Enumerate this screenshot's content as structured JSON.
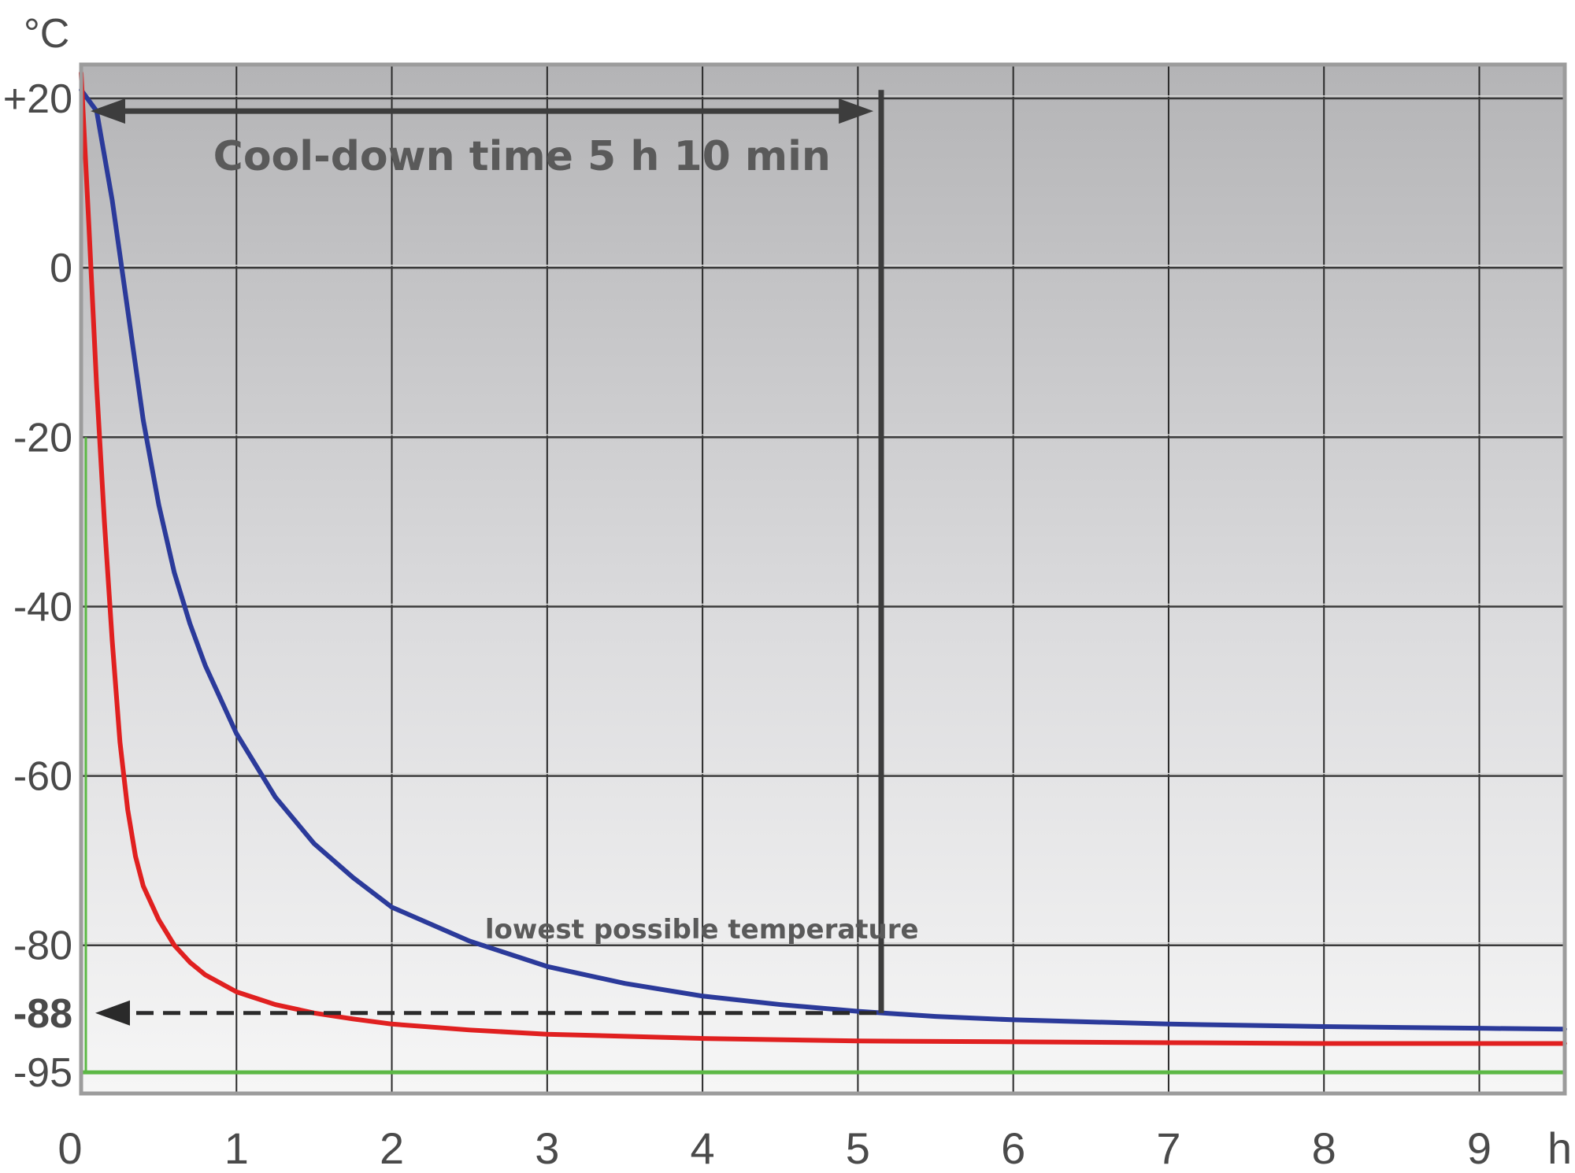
{
  "chart_data": {
    "type": "line",
    "y_unit": "°C",
    "x_unit": "h",
    "xlim": [
      0,
      9.55
    ],
    "ylim": [
      -97.5,
      24
    ],
    "x_ticks": [
      {
        "value": 0,
        "label": "0"
      },
      {
        "value": 1,
        "label": "1"
      },
      {
        "value": 2,
        "label": "2"
      },
      {
        "value": 3,
        "label": "3"
      },
      {
        "value": 4,
        "label": "4"
      },
      {
        "value": 5,
        "label": "5"
      },
      {
        "value": 6,
        "label": "6"
      },
      {
        "value": 7,
        "label": "7"
      },
      {
        "value": 8,
        "label": "8"
      },
      {
        "value": 9,
        "label": "9"
      }
    ],
    "y_ticks": [
      {
        "value": 20,
        "label": "+20"
      },
      {
        "value": 0,
        "label": "0"
      },
      {
        "value": -20,
        "label": "-20"
      },
      {
        "value": -40,
        "label": "-40"
      },
      {
        "value": -60,
        "label": "-60"
      },
      {
        "value": -80,
        "label": "-80"
      },
      {
        "value": -95,
        "label": "-95"
      }
    ],
    "y_highlight": {
      "value": -88,
      "label": "-88"
    },
    "grid": true,
    "series": [
      {
        "color": "#2b3a9a",
        "x": [
          0,
          0.1,
          0.2,
          0.3,
          0.4,
          0.5,
          0.6,
          0.7,
          0.8,
          0.9,
          1.0,
          1.25,
          1.5,
          1.75,
          2.0,
          2.5,
          3.0,
          3.5,
          4.0,
          4.5,
          5.0,
          5.5,
          6.0,
          7.0,
          8.0,
          9.0,
          9.55
        ],
        "y": [
          21,
          18.5,
          8,
          -5,
          -18,
          -28,
          -36,
          -42,
          -47,
          -51,
          -55,
          -62.5,
          -68,
          -72,
          -75.5,
          -79.5,
          -82.5,
          -84.5,
          -86,
          -87,
          -87.8,
          -88.4,
          -88.8,
          -89.3,
          -89.6,
          -89.8,
          -89.9
        ]
      },
      {
        "color": "#e02020",
        "x": [
          0,
          0.05,
          0.1,
          0.15,
          0.2,
          0.25,
          0.3,
          0.35,
          0.4,
          0.5,
          0.6,
          0.7,
          0.8,
          0.9,
          1.0,
          1.25,
          1.5,
          1.75,
          2.0,
          2.5,
          3.0,
          4.0,
          5.0,
          6.0,
          7.0,
          8.0,
          9.0,
          9.55
        ],
        "y": [
          23,
          5,
          -14,
          -30,
          -44,
          -56,
          -64,
          -69.5,
          -73,
          -77,
          -80,
          -82,
          -83.5,
          -84.5,
          -85.5,
          -87,
          -88,
          -88.7,
          -89.3,
          -90,
          -90.5,
          -91,
          -91.3,
          -91.4,
          -91.5,
          -91.6,
          -91.6,
          -91.6
        ]
      },
      {
        "color": "#5cb845",
        "x": [
          0,
          9.55
        ],
        "y": [
          -95,
          -95
        ]
      }
    ],
    "annotations": [
      {
        "id": "cooldown",
        "text": "Cool-down time 5 h 10 min",
        "x_start": 0,
        "x_end": 5.1,
        "y": 18.5
      },
      {
        "id": "lowest",
        "text": "lowest possible temperature",
        "x": 5.15,
        "y": -88
      }
    ]
  }
}
